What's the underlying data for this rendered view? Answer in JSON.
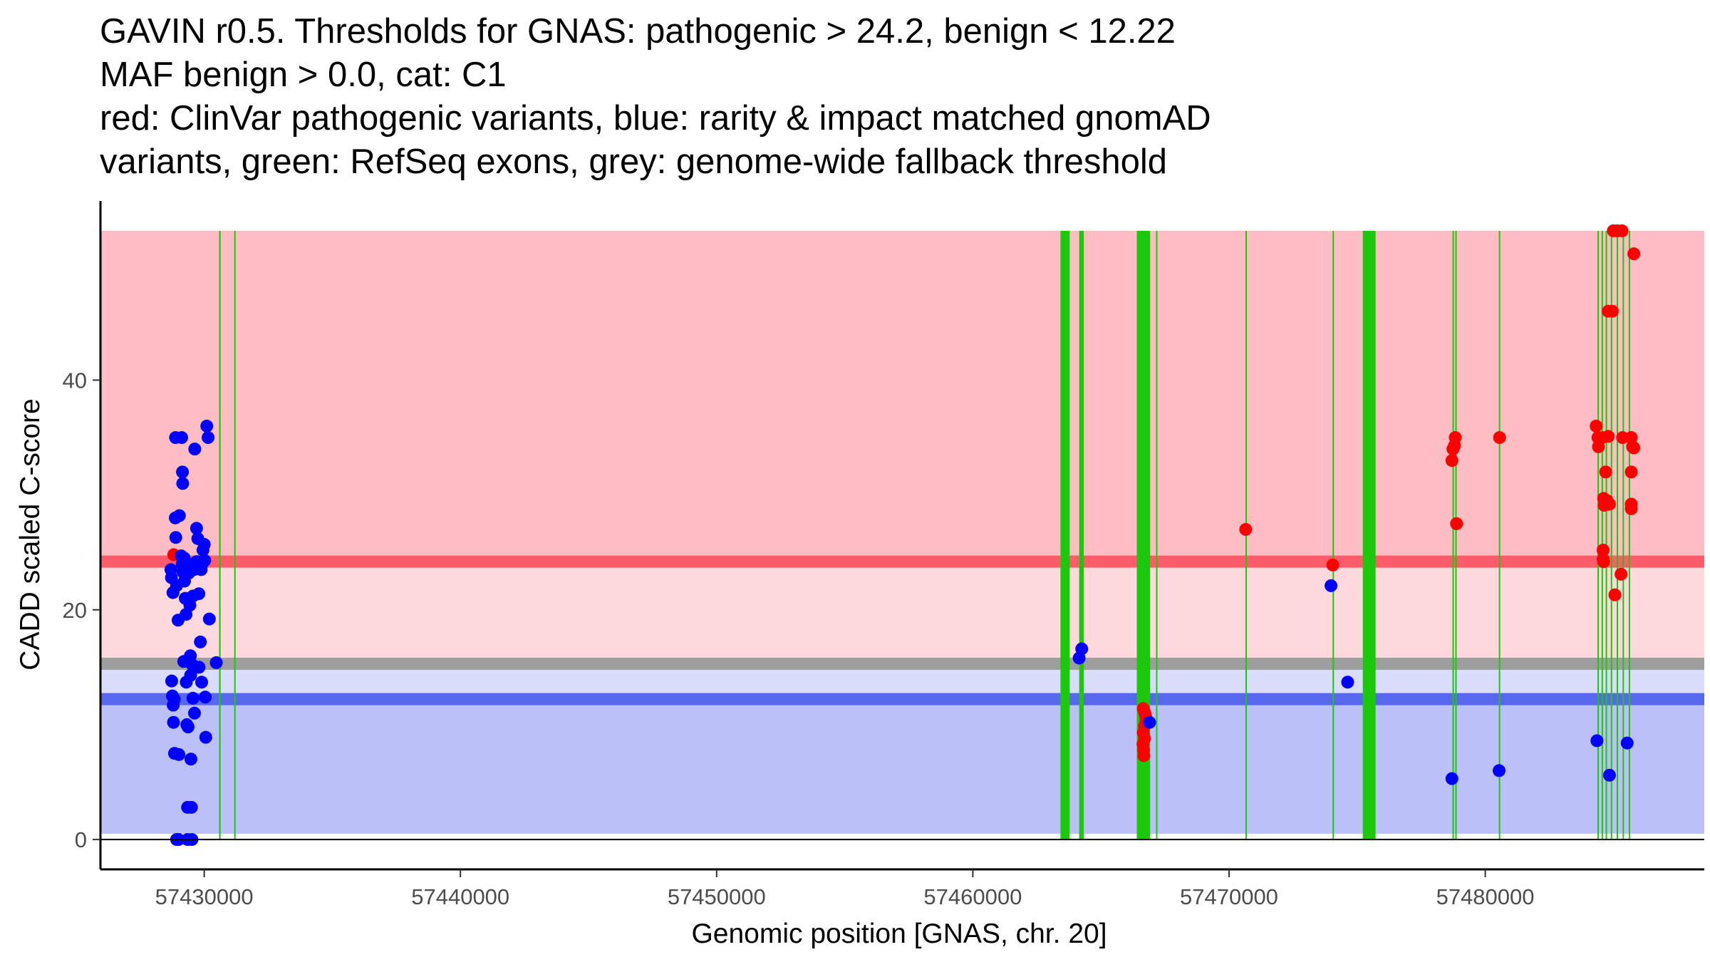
{
  "title_lines": [
    "GAVIN r0.5. Thresholds for GNAS: pathogenic > 24.2, benign < 12.22",
    "MAF benign > 0.0, cat: C1",
    "red: ClinVar pathogenic variants, blue: rarity & impact matched gnomAD",
    "variants, green: RefSeq exons, grey: genome-wide fallback threshold"
  ],
  "chart_data": {
    "type": "scatter",
    "title": "GAVIN r0.5. Thresholds for GNAS: pathogenic > 24.2, benign < 12.22 / MAF benign > 0.0, cat: C1",
    "xlabel": "Genomic position [GNAS, chr. 20]",
    "ylabel": "CADD scaled C-score",
    "xlim": [
      57425950,
      57488550
    ],
    "ylim": [
      -2.6,
      55.6
    ],
    "x_ticks": [
      57430000,
      57440000,
      57450000,
      57460000,
      57470000,
      57480000
    ],
    "x_tick_labels": [
      "57430000",
      "57440000",
      "57450000",
      "57460000",
      "57470000",
      "57480000"
    ],
    "y_ticks": [
      0,
      20,
      40
    ],
    "y_tick_labels": [
      "0",
      "20",
      "40"
    ],
    "grid": false,
    "regions": {
      "pathogenic": {
        "from": 24.2,
        "to": 53,
        "color": "#fdbdc3"
      },
      "intermediate": {
        "from": 15.3,
        "to": 24.2,
        "color": "#fdd8dc"
      },
      "grey_zone": {
        "from": 12.22,
        "to": 15.3,
        "color": "#d9dcfa"
      },
      "benign": {
        "from": 0.5,
        "to": 12.22,
        "color": "#bcc0f9"
      }
    },
    "threshold_lines": [
      {
        "name": "pathogenic threshold",
        "y": 24.2,
        "color": "#fe5b6b"
      },
      {
        "name": "genome-wide fallback threshold",
        "y": 15.3,
        "color": "#9e9e9e"
      },
      {
        "name": "benign threshold",
        "y": 12.22,
        "color": "#5868ee"
      }
    ],
    "exons": [
      [
        57430580,
        57430640
      ],
      [
        57431170,
        57431220
      ],
      [
        57463420,
        57463780
      ],
      [
        57464150,
        57464330
      ],
      [
        57466400,
        57466920
      ],
      [
        57467150,
        57467180
      ],
      [
        57470640,
        57470670
      ],
      [
        57474040,
        57474080
      ],
      [
        57475220,
        57475720
      ],
      [
        57478720,
        57478760
      ],
      [
        57478830,
        57478880
      ],
      [
        57480530,
        57480580
      ],
      [
        57484380,
        57484410
      ],
      [
        57484540,
        57484570
      ],
      [
        57484700,
        57484730
      ],
      [
        57484900,
        57484930
      ],
      [
        57485130,
        57485160
      ],
      [
        57485360,
        57485390
      ],
      [
        57485600,
        57485630
      ]
    ],
    "series": [
      {
        "name": "ClinVar pathogenic variants",
        "color": "#ff0000",
        "points": [
          [
            57428810,
            24.8
          ],
          [
            57466650,
            11.4
          ],
          [
            57466700,
            11.1
          ],
          [
            57466740,
            10.8
          ],
          [
            57466760,
            10.4
          ],
          [
            57466700,
            9.9
          ],
          [
            57466650,
            9.3
          ],
          [
            57466700,
            8.8
          ],
          [
            57466640,
            8.3
          ],
          [
            57466660,
            7.8
          ],
          [
            57466670,
            7.3
          ],
          [
            57470650,
            27
          ],
          [
            57474050,
            23.9
          ],
          [
            57478700,
            33
          ],
          [
            57478740,
            34
          ],
          [
            57478800,
            34.3
          ],
          [
            57478830,
            35
          ],
          [
            57478880,
            27.5
          ],
          [
            57480560,
            35
          ],
          [
            57484330,
            36
          ],
          [
            57484400,
            35
          ],
          [
            57484420,
            34.2
          ],
          [
            57484560,
            35
          ],
          [
            57484600,
            25.2
          ],
          [
            57484600,
            24.4
          ],
          [
            57484620,
            24.2
          ],
          [
            57484620,
            29.7
          ],
          [
            57484640,
            29.1
          ],
          [
            57484700,
            32
          ],
          [
            57484760,
            29.5
          ],
          [
            57484800,
            35.1
          ],
          [
            57484850,
            29.2
          ],
          [
            57484800,
            46
          ],
          [
            57484960,
            46
          ],
          [
            57485000,
            53
          ],
          [
            57485060,
            21.3
          ],
          [
            57485160,
            53
          ],
          [
            57485340,
            53
          ],
          [
            57485300,
            23.1
          ],
          [
            57485360,
            35
          ],
          [
            57485700,
            35
          ],
          [
            57485750,
            34.2
          ],
          [
            57485800,
            34.1
          ],
          [
            57485700,
            32
          ],
          [
            57485700,
            29.2
          ],
          [
            57485700,
            28.8
          ],
          [
            57485800,
            51
          ]
        ]
      },
      {
        "name": "rarity & impact matched gnomAD variants",
        "color": "#0000ff",
        "points": [
          [
            57428700,
            23.5
          ],
          [
            57428720,
            22.8
          ],
          [
            57428780,
            21.5
          ],
          [
            57428730,
            13.8
          ],
          [
            57428760,
            12.5
          ],
          [
            57428790,
            11.7
          ],
          [
            57428800,
            10.2
          ],
          [
            57428840,
            7.5
          ],
          [
            57428830,
            12.2
          ],
          [
            57428870,
            28
          ],
          [
            57428880,
            35
          ],
          [
            57428890,
            26.3
          ],
          [
            57428920,
            22.1
          ],
          [
            57428980,
            19.1
          ],
          [
            57429010,
            7.4
          ],
          [
            57428920,
            0
          ],
          [
            57429000,
            0
          ],
          [
            57429030,
            28.2
          ],
          [
            57429100,
            24.7
          ],
          [
            57429120,
            35
          ],
          [
            57429140,
            24
          ],
          [
            57429150,
            32
          ],
          [
            57429160,
            31
          ],
          [
            57429170,
            23.3
          ],
          [
            57429200,
            15.5
          ],
          [
            57429220,
            24.5
          ],
          [
            57429230,
            22.5
          ],
          [
            57429260,
            21
          ],
          [
            57429290,
            19.6
          ],
          [
            57429300,
            13.7
          ],
          [
            57429320,
            10
          ],
          [
            57429350,
            2.8
          ],
          [
            57429370,
            9.8
          ],
          [
            57429350,
            0
          ],
          [
            57429400,
            23.2
          ],
          [
            57429420,
            23.8
          ],
          [
            57429440,
            20.4
          ],
          [
            57429460,
            16
          ],
          [
            57429470,
            14.3
          ],
          [
            57429480,
            7
          ],
          [
            57429500,
            2.8
          ],
          [
            57429520,
            0
          ],
          [
            57429540,
            15.2
          ],
          [
            57429560,
            21.2
          ],
          [
            57429560,
            12.3
          ],
          [
            57429600,
            23.5
          ],
          [
            57429620,
            11
          ],
          [
            57429630,
            34
          ],
          [
            57429660,
            15
          ],
          [
            57429700,
            27.1
          ],
          [
            57429700,
            24.2
          ],
          [
            57429750,
            26.2
          ],
          [
            57429790,
            21.4
          ],
          [
            57429800,
            15
          ],
          [
            57429850,
            17.2
          ],
          [
            57429880,
            23.5
          ],
          [
            57429900,
            13.7
          ],
          [
            57429920,
            24
          ],
          [
            57429950,
            25.2
          ],
          [
            57430000,
            25.7
          ],
          [
            57430020,
            24.3
          ],
          [
            57430040,
            12.4
          ],
          [
            57430060,
            8.9
          ],
          [
            57430100,
            36
          ],
          [
            57430150,
            35
          ],
          [
            57430200,
            19.2
          ],
          [
            57430470,
            15.4
          ],
          [
            57464150,
            15.8
          ],
          [
            57464250,
            16.6
          ],
          [
            57466900,
            10.2
          ],
          [
            57473980,
            22.1
          ],
          [
            57474630,
            13.7
          ],
          [
            57478700,
            5.3
          ],
          [
            57480540,
            6
          ],
          [
            57484360,
            8.6
          ],
          [
            57484850,
            5.6
          ],
          [
            57485540,
            8.4
          ]
        ]
      }
    ]
  }
}
